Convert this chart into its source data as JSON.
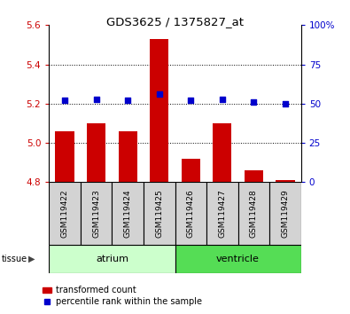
{
  "title": "GDS3625 / 1375827_at",
  "samples": [
    "GSM119422",
    "GSM119423",
    "GSM119424",
    "GSM119425",
    "GSM119426",
    "GSM119427",
    "GSM119428",
    "GSM119429"
  ],
  "transformed_count": [
    5.06,
    5.1,
    5.06,
    5.53,
    4.92,
    5.1,
    4.86,
    4.81
  ],
  "percentile_rank": [
    52,
    53,
    52,
    56,
    52,
    53,
    51,
    50
  ],
  "bar_color": "#cc0000",
  "dot_color": "#0000cc",
  "ylim_left": [
    4.8,
    5.6
  ],
  "ylim_right": [
    0,
    100
  ],
  "yticks_left": [
    4.8,
    5.0,
    5.2,
    5.4,
    5.6
  ],
  "yticks_right": [
    0,
    25,
    50,
    75,
    100
  ],
  "tissue_groups": {
    "atrium": [
      0,
      1,
      2,
      3
    ],
    "ventricle": [
      4,
      5,
      6,
      7
    ]
  },
  "tissue_colors": {
    "atrium": "#ccffcc",
    "ventricle": "#55dd55"
  },
  "bar_bottom": 4.8,
  "bar_width": 0.6,
  "tick_label_color_left": "#cc0000",
  "tick_label_color_right": "#0000cc",
  "grid_yticks": [
    5.0,
    5.2,
    5.4
  ],
  "legend_labels": [
    "transformed count",
    "percentile rank within the sample"
  ]
}
